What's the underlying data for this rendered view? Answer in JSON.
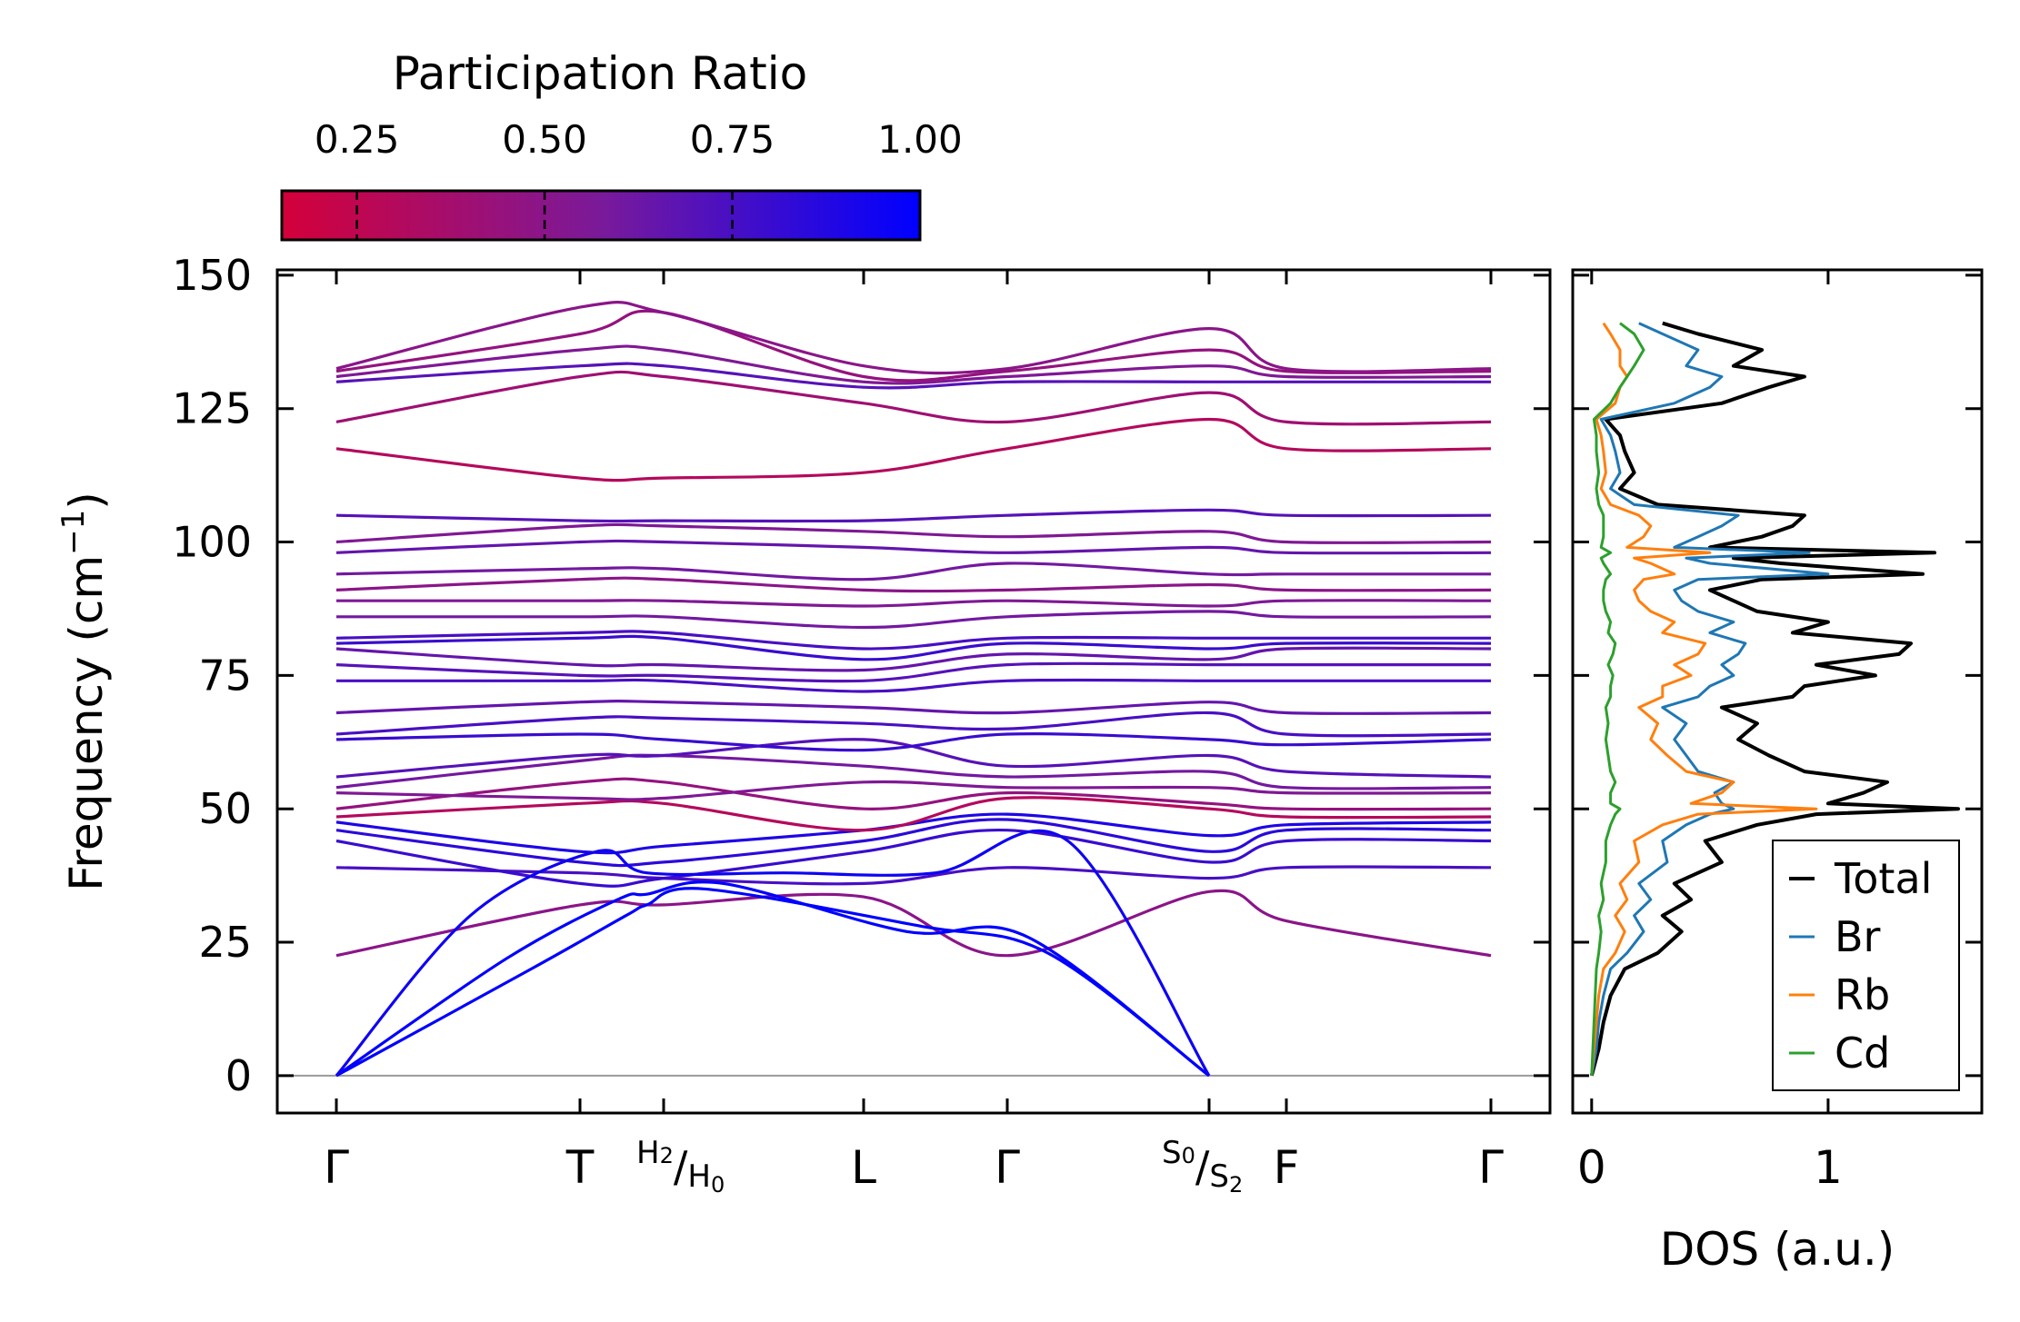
{
  "chart_data": [
    {
      "type": "line",
      "subtype": "phonon-band-structure",
      "ylabel": "Frequency (cm",
      "ylabel_exp": "−1",
      "ylabel_close": ")",
      "ylim": [
        -7,
        151
      ],
      "yticks": [
        0,
        25,
        50,
        75,
        100,
        125,
        150
      ],
      "qpoint_labels": [
        "Γ",
        "T",
        "L",
        "Γ",
        "F",
        "Γ"
      ],
      "path_segments": [
        "Γ–T",
        "T–H2",
        "H0–L",
        "L–Γ",
        "Γ–S0",
        "S2–F",
        "F–Γ"
      ],
      "split_labels": [
        {
          "a": "H",
          "a_sub": "2",
          "b": "H",
          "b_sub": "0"
        },
        {
          "a": "S",
          "a_sub": "0",
          "b": "S",
          "b_sub": "2"
        }
      ],
      "colorbar": {
        "title": "Participation Ratio",
        "ticks": [
          "0.25",
          "0.50",
          "0.75",
          "1.00"
        ],
        "range": [
          0.15,
          1.0
        ],
        "color_low": "#d4003a",
        "color_mid": "#7a1a9a",
        "color_high": "#0000ff"
      },
      "acoustic_branches": [
        {
          "points": [
            [
              0,
              0
            ],
            [
              0.8,
              20
            ],
            [
              1.55,
              30
            ],
            [
              1.8,
              32
            ],
            [
              2.2,
              35
            ],
            [
              3.4,
              28
            ],
            [
              4.2,
              23
            ],
            [
              5.0,
              0
            ]
          ],
          "pr": 1.0
        },
        {
          "points": [
            [
              0,
              0
            ],
            [
              0.7,
              22
            ],
            [
              1.45,
              33
            ],
            [
              1.8,
              34
            ],
            [
              2.3,
              36
            ],
            [
              3.3,
              27
            ],
            [
              4.1,
              26
            ],
            [
              5.0,
              0
            ]
          ],
          "pr": 1.0
        },
        {
          "points": [
            [
              0,
              0
            ],
            [
              0.55,
              30
            ],
            [
              1.2,
              42
            ],
            [
              1.8,
              38
            ],
            [
              2.6,
              38
            ],
            [
              3.5,
              38
            ],
            [
              4.3,
              44
            ],
            [
              5.0,
              0
            ]
          ],
          "pr": 0.95
        }
      ],
      "optical_bands": [
        {
          "freqs": [
            22.5,
            32,
            32,
            33.5,
            22.5,
            34.5,
            29,
            22.5
          ],
          "pr": 0.5
        },
        {
          "freqs": [
            39,
            38,
            37,
            36,
            39,
            37,
            39,
            39
          ],
          "pr": 0.75
        },
        {
          "freqs": [
            44,
            36,
            37,
            42,
            46,
            40,
            44,
            44
          ],
          "pr": 0.8
        },
        {
          "freqs": [
            46,
            40,
            40,
            44,
            48,
            42,
            46,
            46
          ],
          "pr": 0.85
        },
        {
          "freqs": [
            47.5,
            42,
            43,
            46,
            49,
            45,
            47,
            47.5
          ],
          "pr": 0.9
        },
        {
          "freqs": [
            48.5,
            51,
            51,
            46,
            52,
            50,
            48.5,
            48.5
          ],
          "pr": 0.3
        },
        {
          "freqs": [
            50,
            55,
            55,
            50,
            53,
            51,
            50,
            50
          ],
          "pr": 0.45
        },
        {
          "freqs": [
            53,
            52,
            52,
            55,
            54,
            54,
            53,
            53
          ],
          "pr": 0.55
        },
        {
          "freqs": [
            54,
            59,
            60,
            58,
            56,
            57,
            54,
            54
          ],
          "pr": 0.6
        },
        {
          "freqs": [
            56,
            60,
            60,
            63,
            58,
            60,
            57,
            56
          ],
          "pr": 0.7
        },
        {
          "freqs": [
            63,
            64,
            63,
            61,
            64,
            63,
            62,
            63
          ],
          "pr": 0.8
        },
        {
          "freqs": [
            64,
            67,
            67,
            66,
            65,
            68,
            64,
            64
          ],
          "pr": 0.75
        },
        {
          "freqs": [
            68,
            70,
            70,
            69,
            68,
            70,
            68,
            68
          ],
          "pr": 0.65
        },
        {
          "freqs": [
            74,
            74,
            74,
            72,
            74,
            74,
            74,
            74
          ],
          "pr": 0.75
        },
        {
          "freqs": [
            77,
            75,
            75,
            74,
            77,
            77,
            77,
            77
          ],
          "pr": 0.7
        },
        {
          "freqs": [
            80,
            77,
            77,
            76,
            79,
            78,
            80,
            80
          ],
          "pr": 0.65
        },
        {
          "freqs": [
            81,
            82,
            82,
            78,
            81,
            80,
            81,
            81
          ],
          "pr": 0.8
        },
        {
          "freqs": [
            82,
            83,
            83,
            80,
            82,
            82,
            82,
            82
          ],
          "pr": 0.75
        },
        {
          "freqs": [
            86,
            86,
            86,
            84,
            86,
            87,
            86,
            86
          ],
          "pr": 0.6
        },
        {
          "freqs": [
            89,
            89,
            89,
            88,
            89,
            88,
            89,
            89
          ],
          "pr": 0.55
        },
        {
          "freqs": [
            91,
            93,
            93,
            91,
            91,
            92,
            91,
            91
          ],
          "pr": 0.5
        },
        {
          "freqs": [
            94,
            95,
            95,
            93,
            96,
            94,
            94,
            94
          ],
          "pr": 0.6
        },
        {
          "freqs": [
            98,
            100,
            100,
            99,
            98,
            99,
            98,
            98
          ],
          "pr": 0.65
        },
        {
          "freqs": [
            100,
            103,
            103,
            102,
            101,
            102,
            100,
            100
          ],
          "pr": 0.55
        },
        {
          "freqs": [
            105,
            104,
            104,
            104,
            105,
            106,
            105,
            105
          ],
          "pr": 0.7
        },
        {
          "freqs": [
            117.5,
            112,
            112,
            113,
            117.5,
            123,
            117.5,
            117.5
          ],
          "pr": 0.3
        },
        {
          "freqs": [
            122.5,
            131,
            131,
            126,
            122.5,
            128,
            122.5,
            122.5
          ],
          "pr": 0.4
        },
        {
          "freqs": [
            130,
            133,
            133,
            129,
            130,
            130,
            130,
            130
          ],
          "pr": 0.7
        },
        {
          "freqs": [
            131,
            136,
            136,
            130,
            131,
            133,
            131,
            131
          ],
          "pr": 0.55
        },
        {
          "freqs": [
            132,
            139,
            143,
            131,
            132,
            136,
            132,
            132
          ],
          "pr": 0.45
        },
        {
          "freqs": [
            132.5,
            144,
            143,
            133,
            132.5,
            140,
            132.5,
            132.5
          ],
          "pr": 0.5
        }
      ]
    },
    {
      "type": "line",
      "subtype": "density-of-states",
      "xlabel": "DOS (a.u.)",
      "xlim": [
        -0.08,
        1.65
      ],
      "xticks": [
        "0",
        "1"
      ],
      "ylim": [
        -7,
        151
      ],
      "legend_position": "lower-right",
      "series": [
        {
          "name": "Total",
          "color": "#000000",
          "freq": [
            0,
            5,
            10,
            15,
            20,
            23,
            27,
            30,
            33,
            36,
            40,
            44,
            47,
            49,
            50,
            51,
            53,
            55,
            57,
            60,
            63,
            66,
            69,
            71,
            73,
            75,
            77,
            79,
            81,
            83,
            85,
            87,
            89,
            91,
            93,
            94,
            96,
            97,
            98,
            99,
            101,
            103,
            105,
            107,
            110,
            113,
            117,
            120,
            123,
            126,
            129,
            131,
            133,
            136,
            139,
            141
          ],
          "dos": [
            0,
            0.03,
            0.05,
            0.08,
            0.14,
            0.28,
            0.38,
            0.3,
            0.42,
            0.35,
            0.55,
            0.48,
            0.7,
            0.95,
            1.55,
            1.0,
            1.15,
            1.25,
            0.9,
            0.75,
            0.62,
            0.7,
            0.55,
            0.85,
            0.9,
            1.2,
            0.95,
            1.3,
            1.35,
            0.85,
            1.0,
            0.7,
            0.6,
            0.5,
            0.72,
            1.4,
            0.8,
            0.6,
            1.45,
            0.5,
            0.72,
            0.85,
            0.9,
            0.28,
            0.12,
            0.18,
            0.14,
            0.12,
            0.06,
            0.55,
            0.75,
            0.9,
            0.6,
            0.72,
            0.45,
            0.3
          ]
        },
        {
          "name": "Br",
          "color": "#1f77b4",
          "freq": [
            0,
            5,
            10,
            15,
            20,
            23,
            27,
            30,
            33,
            36,
            40,
            44,
            47,
            49,
            50,
            51,
            53,
            55,
            57,
            60,
            63,
            66,
            69,
            71,
            73,
            75,
            77,
            79,
            81,
            83,
            85,
            87,
            89,
            91,
            93,
            94,
            96,
            97,
            98,
            99,
            101,
            103,
            105,
            107,
            110,
            113,
            117,
            120,
            123,
            126,
            129,
            131,
            133,
            136,
            139,
            141
          ],
          "dos": [
            0,
            0.02,
            0.03,
            0.05,
            0.08,
            0.15,
            0.22,
            0.18,
            0.25,
            0.2,
            0.32,
            0.3,
            0.4,
            0.5,
            0.6,
            0.55,
            0.52,
            0.6,
            0.45,
            0.4,
            0.35,
            0.4,
            0.3,
            0.45,
            0.5,
            0.6,
            0.55,
            0.62,
            0.65,
            0.5,
            0.6,
            0.45,
            0.38,
            0.35,
            0.45,
            1.0,
            0.5,
            0.4,
            0.92,
            0.35,
            0.45,
            0.55,
            0.62,
            0.18,
            0.08,
            0.12,
            0.1,
            0.08,
            0.04,
            0.35,
            0.5,
            0.55,
            0.4,
            0.45,
            0.3,
            0.2
          ]
        },
        {
          "name": "Rb",
          "color": "#ff7f0e",
          "freq": [
            0,
            5,
            10,
            15,
            20,
            23,
            27,
            30,
            33,
            36,
            40,
            44,
            47,
            49,
            50,
            51,
            53,
            55,
            57,
            60,
            63,
            66,
            69,
            71,
            73,
            75,
            77,
            79,
            81,
            83,
            85,
            87,
            89,
            91,
            93,
            94,
            96,
            97,
            98,
            99,
            101,
            103,
            105,
            107,
            110,
            113,
            117,
            120,
            123,
            126,
            129,
            131,
            133,
            136,
            139,
            141
          ],
          "dos": [
            0,
            0.01,
            0.02,
            0.03,
            0.05,
            0.1,
            0.14,
            0.1,
            0.15,
            0.12,
            0.2,
            0.18,
            0.3,
            0.45,
            0.95,
            0.42,
            0.55,
            0.6,
            0.4,
            0.32,
            0.25,
            0.28,
            0.2,
            0.3,
            0.3,
            0.42,
            0.35,
            0.45,
            0.48,
            0.3,
            0.35,
            0.25,
            0.2,
            0.18,
            0.22,
            0.35,
            0.25,
            0.18,
            0.5,
            0.15,
            0.22,
            0.25,
            0.2,
            0.08,
            0.04,
            0.06,
            0.05,
            0.04,
            0.02,
            0.1,
            0.12,
            0.15,
            0.12,
            0.12,
            0.08,
            0.05
          ]
        },
        {
          "name": "Cd",
          "color": "#2ca02c",
          "freq": [
            0,
            5,
            10,
            15,
            20,
            23,
            27,
            30,
            33,
            36,
            40,
            44,
            47,
            49,
            50,
            51,
            53,
            55,
            57,
            60,
            63,
            66,
            69,
            71,
            73,
            75,
            77,
            79,
            81,
            83,
            85,
            87,
            89,
            91,
            93,
            94,
            96,
            97,
            98,
            99,
            101,
            103,
            105,
            107,
            110,
            113,
            117,
            120,
            123,
            126,
            129,
            131,
            133,
            136,
            139,
            141
          ],
          "dos": [
            0,
            0.005,
            0.01,
            0.015,
            0.02,
            0.03,
            0.04,
            0.03,
            0.05,
            0.04,
            0.06,
            0.06,
            0.08,
            0.1,
            0.12,
            0.08,
            0.08,
            0.1,
            0.08,
            0.07,
            0.06,
            0.07,
            0.06,
            0.08,
            0.08,
            0.09,
            0.07,
            0.09,
            0.1,
            0.07,
            0.08,
            0.06,
            0.05,
            0.05,
            0.06,
            0.08,
            0.05,
            0.04,
            0.08,
            0.04,
            0.05,
            0.05,
            0.05,
            0.03,
            0.02,
            0.03,
            0.02,
            0.02,
            0.01,
            0.08,
            0.12,
            0.15,
            0.18,
            0.22,
            0.18,
            0.12
          ]
        }
      ]
    }
  ]
}
